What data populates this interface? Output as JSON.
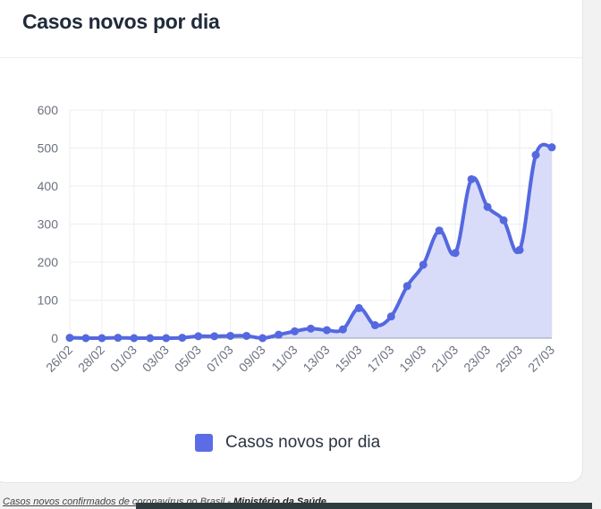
{
  "title": "Casos novos por dia",
  "legend_label": "Casos novos por dia",
  "caption": {
    "text": "Casos novos confirmados de coronavírus no Brasil",
    "separator": " - ",
    "source": "Ministério da Saúde"
  },
  "colors": {
    "line": "#5468e0",
    "fill": "#d9dcf8",
    "grid": "#eceef1",
    "tick": "#6b7280"
  },
  "chart_data": {
    "type": "area",
    "title": "Casos novos por dia",
    "xlabel": "",
    "ylabel": "",
    "ylim": [
      0,
      600
    ],
    "yticks": [
      0,
      100,
      200,
      300,
      400,
      500,
      600
    ],
    "grid": true,
    "legend_position": "bottom",
    "x": [
      "26/02",
      "27/02",
      "28/02",
      "29/02",
      "01/03",
      "02/03",
      "03/03",
      "04/03",
      "05/03",
      "06/03",
      "07/03",
      "08/03",
      "09/03",
      "10/03",
      "11/03",
      "12/03",
      "13/03",
      "14/03",
      "15/03",
      "16/03",
      "17/03",
      "18/03",
      "19/03",
      "20/03",
      "21/03",
      "22/03",
      "23/03",
      "24/03",
      "25/03",
      "26/03",
      "27/03"
    ],
    "xtick_labels": [
      "26/02",
      "28/02",
      "01/03",
      "03/03",
      "05/03",
      "07/03",
      "09/03",
      "11/03",
      "13/03",
      "15/03",
      "17/03",
      "19/03",
      "21/03",
      "23/03",
      "25/03",
      "27/03"
    ],
    "series": [
      {
        "name": "Casos novos por dia",
        "values": [
          1,
          0,
          0,
          1,
          0,
          0,
          0,
          1,
          5,
          5,
          6,
          6,
          0,
          9,
          18,
          25,
          21,
          23,
          79,
          34,
          57,
          137,
          193,
          283,
          224,
          418,
          345,
          310,
          232,
          482,
          502
        ]
      }
    ]
  }
}
